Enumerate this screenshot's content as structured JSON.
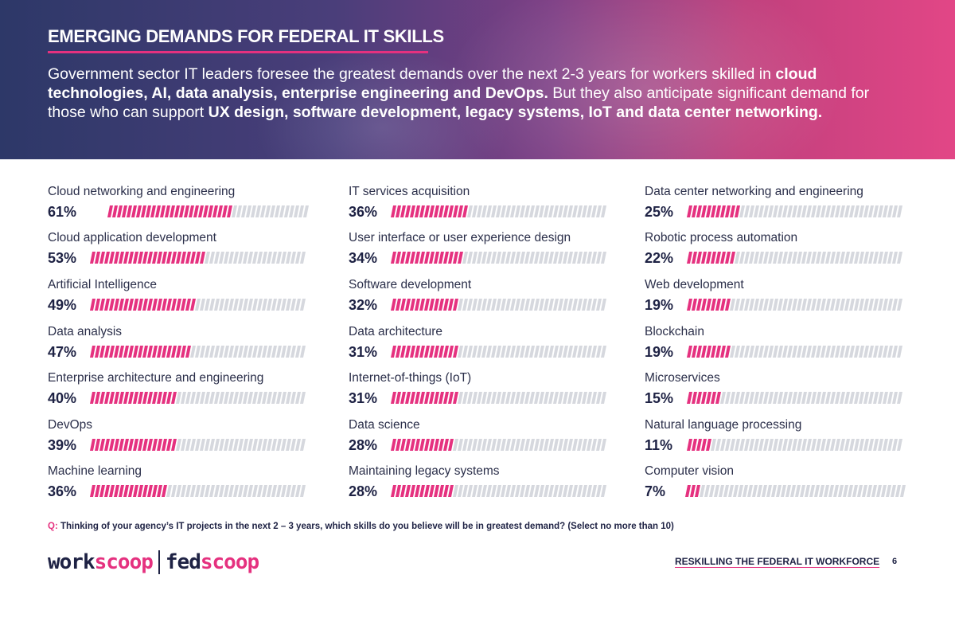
{
  "header": {
    "title": "EMERGING DEMANDS FOR FEDERAL IT SKILLS",
    "intro": [
      {
        "text": "Government sector IT leaders foresee the greatest demands over the next 2-3 years for workers skilled in ",
        "bold": false
      },
      {
        "text": "cloud technologies, AI, data analysis, enterprise engineering and DevOps.",
        "bold": true
      },
      {
        "text": " But they also anticipate significant demand for those who can support ",
        "bold": false
      },
      {
        "text": "UX design, software development, legacy systems, IoT and data center networking.",
        "bold": true
      }
    ]
  },
  "colors": {
    "accent": "#e5317f",
    "bar_empty": "#d6d8de",
    "text_dark": "#1e2244"
  },
  "chart_data": {
    "type": "bar",
    "columns": [
      [
        {
          "label": "Cloud networking and engineering",
          "value": 61,
          "value_text": "61%"
        },
        {
          "label": "Cloud application development",
          "value": 53,
          "value_text": "53%"
        },
        {
          "label": "Artificial Intelligence",
          "value": 49,
          "value_text": "49%"
        },
        {
          "label": "Data analysis",
          "value": 47,
          "value_text": "47%"
        },
        {
          "label": "Enterprise architecture and engineering",
          "value": 40,
          "value_text": "40%"
        },
        {
          "label": "DevOps",
          "value": 39,
          "value_text": "39%"
        },
        {
          "label": "Machine learning",
          "value": 36,
          "value_text": "36%"
        }
      ],
      [
        {
          "label": "IT services acquisition",
          "value": 36,
          "value_text": "36%"
        },
        {
          "label": "User interface or user experience design",
          "value": 34,
          "value_text": "34%"
        },
        {
          "label": "Software development",
          "value": 32,
          "value_text": "32%"
        },
        {
          "label": "Data architecture",
          "value": 31,
          "value_text": "31%"
        },
        {
          "label": "Internet-of-things (IoT)",
          "value": 31,
          "value_text": "31%"
        },
        {
          "label": "Data science",
          "value": 28,
          "value_text": "28%"
        },
        {
          "label": "Maintaining legacy systems",
          "value": 28,
          "value_text": "28%"
        }
      ],
      [
        {
          "label": "Data center networking and engineering",
          "value": 25,
          "value_text": "25%"
        },
        {
          "label": "Robotic process automation",
          "value": 22,
          "value_text": "22%"
        },
        {
          "label": "Web development",
          "value": 19,
          "value_text": "19%"
        },
        {
          "label": "Blockchain",
          "value": 19,
          "value_text": "19%"
        },
        {
          "label": "Microservices",
          "value": 15,
          "value_text": "15%"
        },
        {
          "label": "Natural language processing",
          "value": 11,
          "value_text": "11%"
        },
        {
          "label": "Computer vision",
          "value": 7,
          "value_text": "7%"
        }
      ]
    ]
  },
  "footer": {
    "question_prefix": "Q:",
    "question": " Thinking of your agency’s IT projects in the next 2 – 3 years, which skills do you believe will be in greatest demand?  (Select no more than 10)",
    "logo_left_1": "work",
    "logo_left_2": "scoop",
    "logo_right_1": "fed",
    "logo_right_2": "scoop",
    "report_title": "RESKILLING THE FEDERAL IT WORKFORCE",
    "page_number": "6"
  }
}
